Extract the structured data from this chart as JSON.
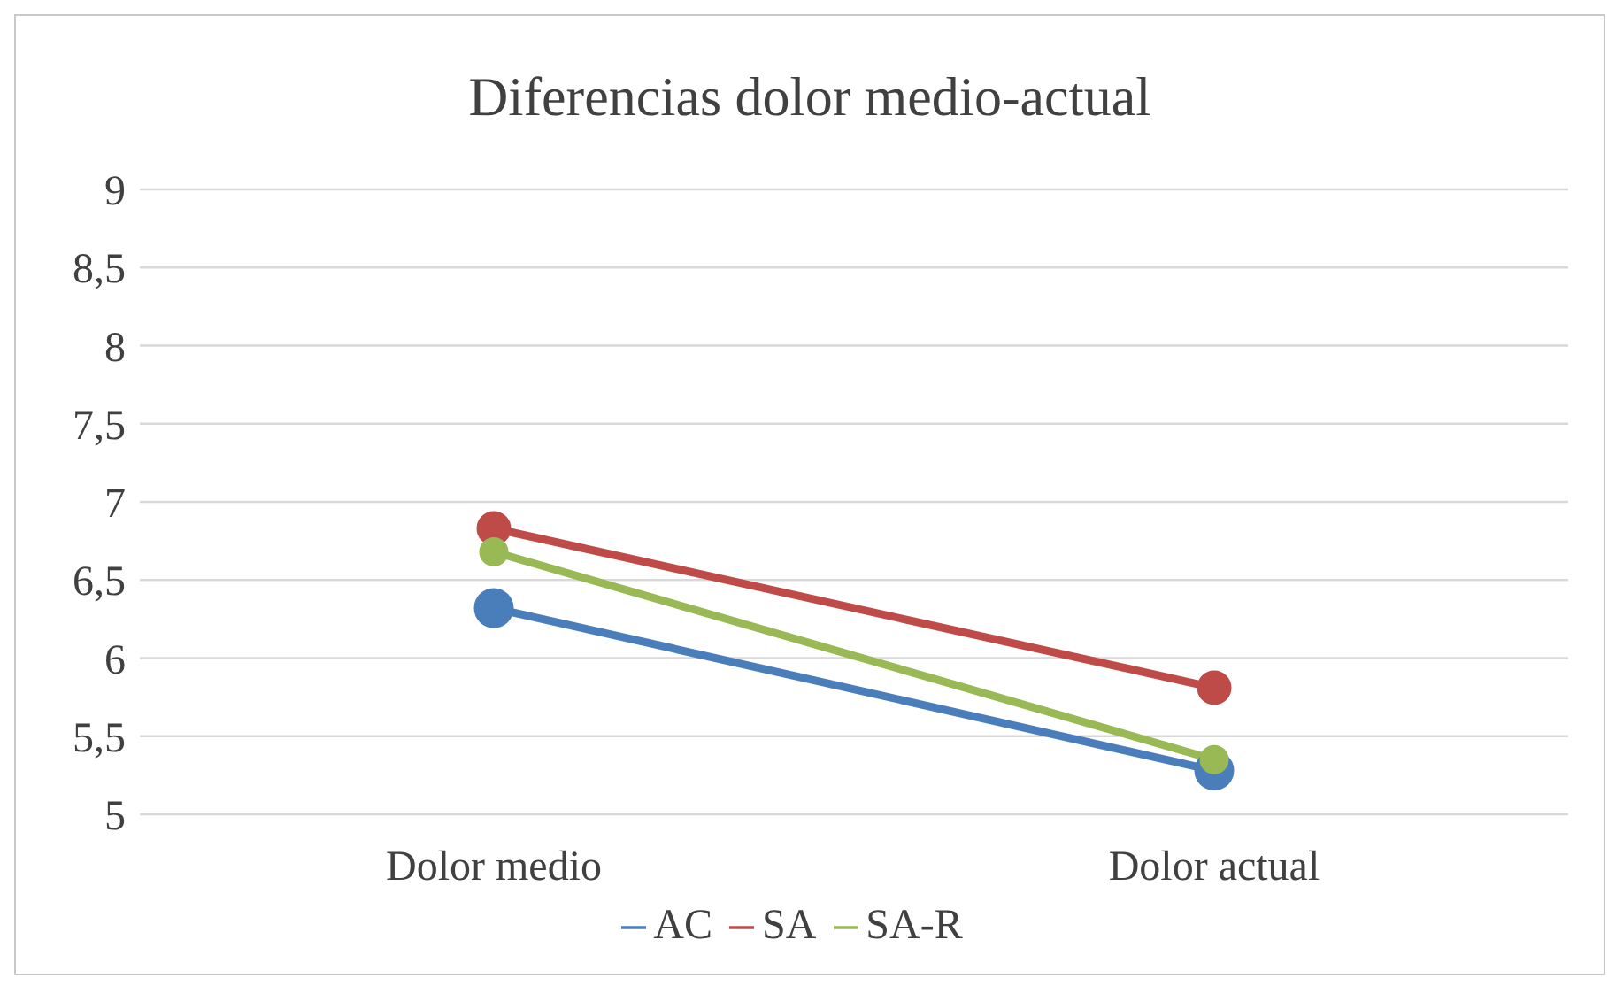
{
  "chart_data": {
    "type": "line",
    "title": "Diferencias dolor medio-actual",
    "categories": [
      "Dolor medio",
      "Dolor actual"
    ],
    "series": [
      {
        "name": "AC",
        "color": "#4a7ebb",
        "values": [
          6.32,
          5.28
        ]
      },
      {
        "name": "SA",
        "color": "#be4b48",
        "values": [
          6.83,
          5.81
        ]
      },
      {
        "name": "SA-R",
        "color": "#98b954",
        "values": [
          6.68,
          5.35
        ]
      }
    ],
    "ylim": [
      5,
      9
    ],
    "yticks": [
      5,
      {
        "value": 5.5,
        "label": "5,5"
      },
      6,
      {
        "value": 6.5,
        "label": "6,5"
      },
      7,
      {
        "value": 7.5,
        "label": "7,5"
      },
      8,
      {
        "value": 8.5,
        "label": "8,5"
      },
      9
    ],
    "grid": "y",
    "legend": "bottom",
    "marker": "circle",
    "line_style": "solid"
  }
}
